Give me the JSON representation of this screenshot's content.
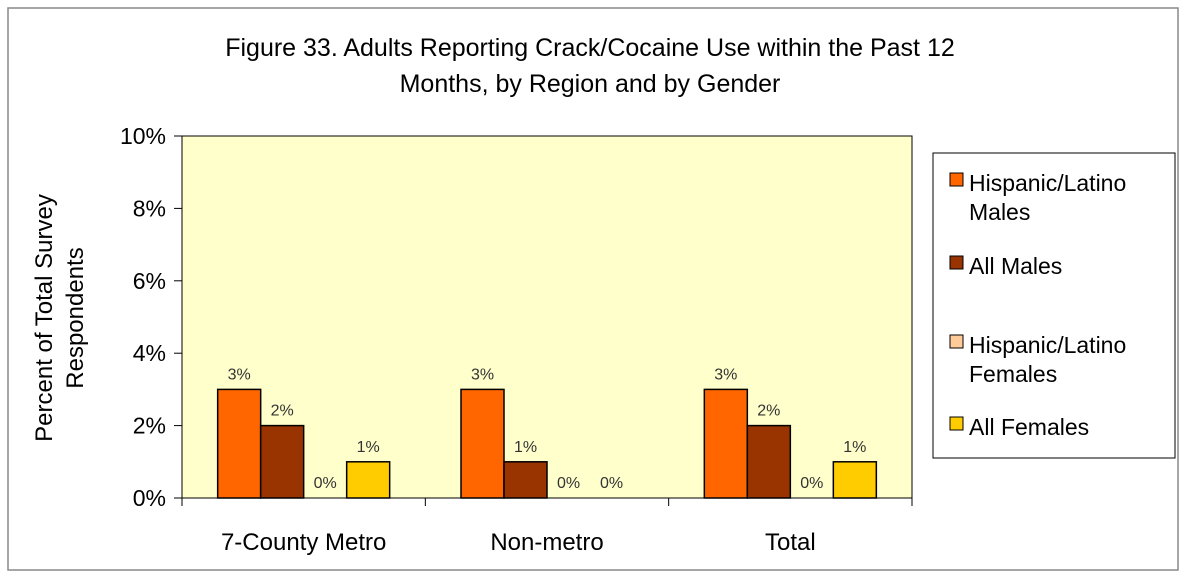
{
  "chart_data": {
    "type": "bar",
    "title_lines": [
      "Figure 33. Adults Reporting Crack/Cocaine Use within the Past 12",
      "Months, by Region and by Gender"
    ],
    "ylabel_lines": [
      "Percent of Total Survey",
      "Respondents"
    ],
    "xlabel": "",
    "categories": [
      "7-County Metro",
      "Non-metro",
      "Total"
    ],
    "ylim": [
      0,
      10
    ],
    "yticks": [
      0,
      2,
      4,
      6,
      8,
      10
    ],
    "ytick_labels": [
      "0%",
      "2%",
      "4%",
      "6%",
      "8%",
      "10%"
    ],
    "grid": false,
    "legend_position": "right",
    "series": [
      {
        "name_lines": [
          "Hispanic/Latino",
          "Males"
        ],
        "color": "#ff6600",
        "values": [
          3,
          3,
          3
        ],
        "labels": [
          "3%",
          "3%",
          "3%"
        ]
      },
      {
        "name_lines": [
          "All Males"
        ],
        "color": "#993300",
        "values": [
          2,
          1,
          2
        ],
        "labels": [
          "2%",
          "1%",
          "2%"
        ]
      },
      {
        "name_lines": [
          "Hispanic/Latino",
          "Females"
        ],
        "color": "#ffcc99",
        "values": [
          0,
          0,
          0
        ],
        "labels": [
          "0%",
          "0%",
          "0%"
        ]
      },
      {
        "name_lines": [
          "All Females"
        ],
        "color": "#ffcc00",
        "values": [
          1,
          0,
          1
        ],
        "labels": [
          "1%",
          "0%",
          "1%"
        ]
      }
    ],
    "plot_background": "#ffffcc"
  }
}
